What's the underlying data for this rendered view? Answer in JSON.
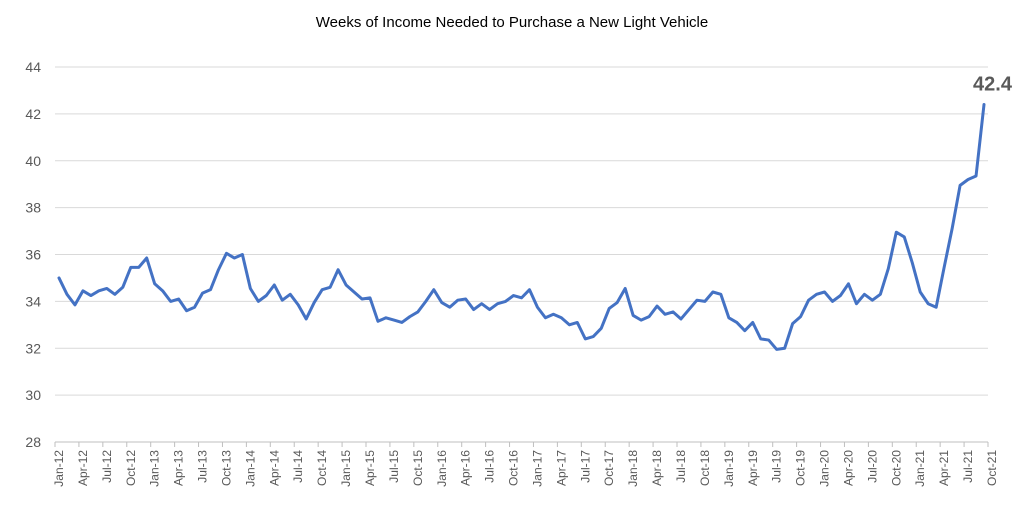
{
  "chart_data": {
    "type": "line",
    "title": "Weeks of Income Needed to Purchase a New Light Vehicle",
    "xlabel": "",
    "ylabel": "",
    "ylim": [
      28,
      44
    ],
    "yticks": [
      "28",
      "30",
      "32",
      "34",
      "36",
      "38",
      "40",
      "42",
      "44"
    ],
    "grid": true,
    "legend": "none",
    "x_tick_labels": [
      "Jan-12",
      "Apr-12",
      "Jul-12",
      "Oct-12",
      "Jan-13",
      "Apr-13",
      "Jul-13",
      "Oct-13",
      "Jan-14",
      "Apr-14",
      "Jul-14",
      "Oct-14",
      "Jan-15",
      "Apr-15",
      "Jul-15",
      "Oct-15",
      "Jan-16",
      "Apr-16",
      "Jul-16",
      "Oct-16",
      "Jan-17",
      "Apr-17",
      "Jul-17",
      "Oct-17",
      "Jan-18",
      "Apr-18",
      "Jul-18",
      "Oct-18",
      "Jan-19",
      "Apr-19",
      "Jul-19",
      "Oct-19",
      "Jan-20",
      "Apr-20",
      "Jul-20",
      "Oct-20",
      "Jan-21",
      "Apr-21",
      "Jul-21",
      "Oct-21"
    ],
    "series": [
      {
        "color": "#4472C4",
        "values": [
          35.0,
          34.3,
          33.85,
          34.45,
          34.25,
          34.45,
          34.55,
          34.3,
          34.6,
          35.45,
          35.45,
          35.85,
          34.75,
          34.45,
          34.0,
          34.1,
          33.6,
          33.75,
          34.35,
          34.5,
          35.35,
          36.05,
          35.85,
          36.0,
          34.55,
          34.0,
          34.25,
          34.7,
          34.05,
          34.3,
          33.85,
          33.25,
          33.95,
          34.5,
          34.6,
          35.35,
          34.7,
          34.4,
          34.1,
          34.15,
          33.15,
          33.3,
          33.2,
          33.1,
          33.35,
          33.55,
          34.0,
          34.5,
          33.95,
          33.75,
          34.05,
          34.1,
          33.65,
          33.9,
          33.65,
          33.9,
          34.0,
          34.25,
          34.15,
          34.5,
          33.75,
          33.3,
          33.45,
          33.3,
          33.0,
          33.1,
          32.4,
          32.5,
          32.85,
          33.7,
          33.95,
          34.55,
          33.4,
          33.2,
          33.35,
          33.8,
          33.45,
          33.55,
          33.25,
          33.65,
          34.05,
          34.0,
          34.4,
          34.3,
          33.3,
          33.1,
          32.75,
          33.1,
          32.4,
          32.35,
          31.95,
          32.0,
          33.05,
          33.35,
          34.05,
          34.3,
          34.4,
          34.0,
          34.25,
          34.75,
          33.9,
          34.3,
          34.05,
          34.3,
          35.4,
          36.95,
          36.75,
          35.65,
          34.4,
          33.9,
          33.75,
          35.45,
          37.1,
          38.95,
          39.2,
          39.35,
          42.4
        ]
      }
    ],
    "annotations": [
      {
        "text": "42.4",
        "x": "Oct-21",
        "y": 42.4
      }
    ]
  }
}
